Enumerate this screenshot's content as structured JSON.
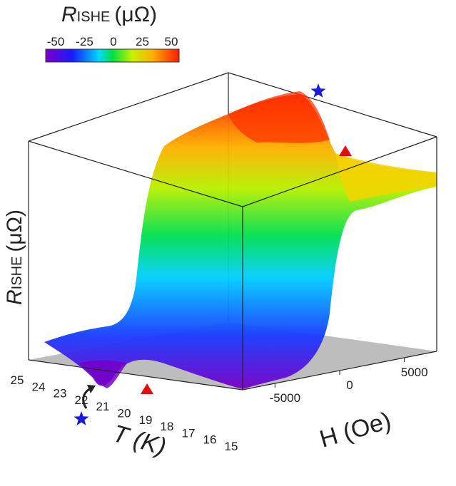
{
  "chart_data": {
    "type": "surface",
    "title": "",
    "colorbar": {
      "label_italic": "R",
      "label_sub": "ISHE",
      "label_unit": "(μΩ)",
      "tick_labels": [
        "-50",
        "-25",
        "0",
        "25",
        "50"
      ],
      "range": [
        -55,
        55
      ]
    },
    "z_axis": {
      "label_italic": "R",
      "label_sub": "ISHE",
      "label_unit": "(μΩ)"
    },
    "t_axis": {
      "label_italic": "T (K)",
      "ticks": [
        "25",
        "24",
        "23",
        "22",
        "21",
        "20",
        "19",
        "18",
        "17",
        "16",
        "15"
      ],
      "range": [
        15,
        25
      ]
    },
    "h_axis": {
      "label": "H (Oe)",
      "ticks": [
        "-5000",
        "0",
        "5000"
      ],
      "range": [
        -7500,
        7500
      ]
    },
    "description_series": [
      {
        "T": 15,
        "low_field_R": -40,
        "high_field_R": 40
      },
      {
        "T": 22,
        "low_field_R": -55,
        "high_field_R": 55
      },
      {
        "T": 25,
        "low_field_R": -45,
        "high_field_R": 45
      }
    ],
    "markers": [
      {
        "shape": "star",
        "color": "#1a1adc"
      },
      {
        "shape": "star",
        "color": "#1a1adc"
      },
      {
        "shape": "triangle",
        "color": "#e01010"
      },
      {
        "shape": "triangle",
        "color": "#e01010"
      }
    ]
  }
}
